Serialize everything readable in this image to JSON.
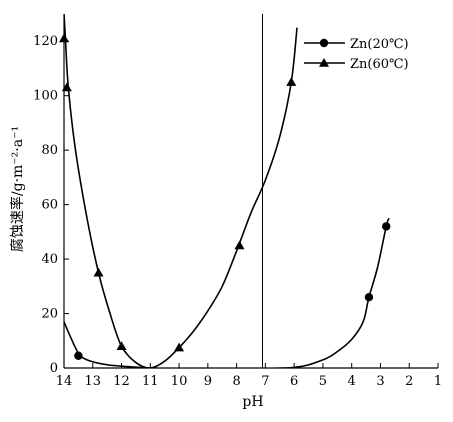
{
  "chart_data": {
    "type": "line",
    "xlabel": "pH",
    "ylabel": "腐蚀速率/g·m⁻²·a⁻¹",
    "x_ticks": [
      "14",
      "13",
      "12",
      "11",
      "10",
      "9",
      "8",
      "7",
      "6",
      "5",
      "4",
      "3",
      "2",
      "1"
    ],
    "y_ticks": [
      "0",
      "20",
      "40",
      "60",
      "80",
      "100",
      "120"
    ],
    "xlim": [
      14,
      1
    ],
    "ylim": [
      0,
      130
    ],
    "reference_line_x": 7.1,
    "legend_position": "top-right",
    "series": [
      {
        "name": "Zn(20℃)",
        "marker": "circle",
        "points": [
          [
            13.5,
            4.5
          ],
          [
            3.4,
            26
          ],
          [
            2.8,
            52
          ]
        ],
        "curve": [
          [
            14,
            17
          ],
          [
            13.8,
            12
          ],
          [
            13.5,
            5.5
          ],
          [
            13.2,
            3
          ],
          [
            12.5,
            1.2
          ],
          [
            11.5,
            0.3
          ],
          [
            11,
            0
          ],
          [
            10,
            -0.2
          ],
          [
            8,
            -0.2
          ],
          [
            6,
            0.2
          ],
          [
            5,
            3
          ],
          [
            4.5,
            6
          ],
          [
            4,
            10.5
          ],
          [
            3.6,
            17
          ],
          [
            3.4,
            26
          ],
          [
            3.1,
            37
          ],
          [
            2.8,
            52
          ],
          [
            2.7,
            55
          ]
        ]
      },
      {
        "name": "Zn(60℃)",
        "marker": "triangle",
        "points": [
          [
            14,
            121
          ],
          [
            13.9,
            103
          ],
          [
            12.8,
            35
          ],
          [
            12,
            8
          ],
          [
            10,
            7.5
          ],
          [
            7.9,
            45
          ],
          [
            6.1,
            105
          ]
        ],
        "curve": [
          [
            14,
            130
          ],
          [
            13.95,
            121
          ],
          [
            13.85,
            103
          ],
          [
            13.6,
            80
          ],
          [
            13.2,
            55
          ],
          [
            12.8,
            35
          ],
          [
            12.4,
            20
          ],
          [
            12,
            8
          ],
          [
            11.5,
            2
          ],
          [
            11,
            0
          ],
          [
            10.5,
            2.5
          ],
          [
            10,
            7.5
          ],
          [
            9.5,
            13.5
          ],
          [
            9,
            21
          ],
          [
            8.5,
            30
          ],
          [
            8,
            43
          ],
          [
            7.5,
            57
          ],
          [
            7,
            69
          ],
          [
            6.5,
            85
          ],
          [
            6.1,
            105
          ],
          [
            5.9,
            125
          ]
        ]
      }
    ]
  }
}
